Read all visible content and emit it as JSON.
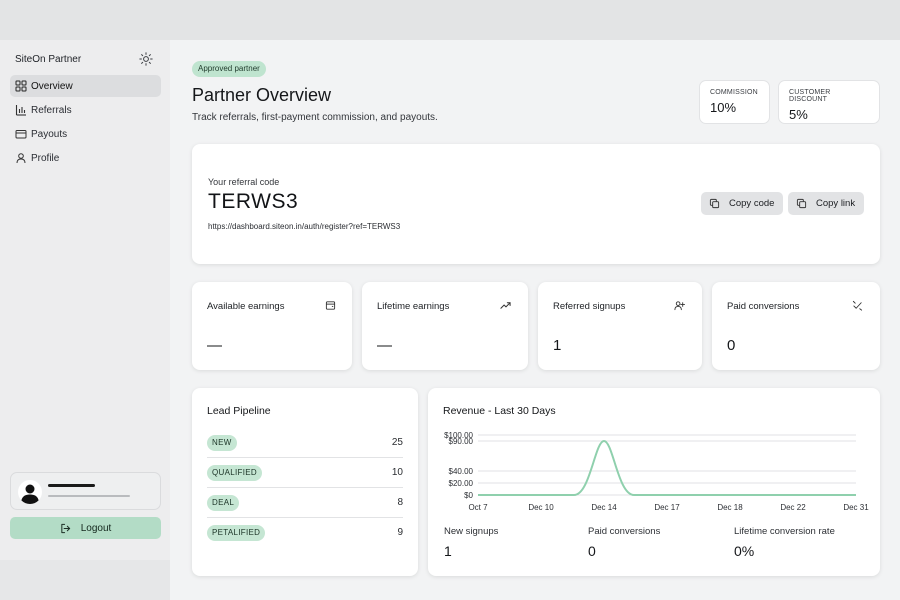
{
  "sidebar": {
    "brand": "SiteOn Partner",
    "theme_icon": "sun-icon",
    "nav": [
      {
        "label": "Overview",
        "icon": "grid-icon",
        "active": true
      },
      {
        "label": "Referrals",
        "icon": "bar-chart-icon",
        "active": false
      },
      {
        "label": "Payouts",
        "icon": "card-icon",
        "active": false
      },
      {
        "label": "Profile",
        "icon": "user-icon",
        "active": false
      }
    ],
    "logout_label": "Logout"
  },
  "header": {
    "badge": "Approved partner",
    "title": "Partner Overview",
    "subtitle": "Track referrals, first-payment commission, and payouts.",
    "stats": [
      {
        "label": "COMMISSION",
        "value": "10%"
      },
      {
        "label": "CUSTOMER DISCOUNT",
        "value": "5%"
      }
    ]
  },
  "referral": {
    "label": "Your referral code",
    "code": "TERWS3",
    "url": "https://dashboard.siteon.in/auth/register?ref=TERWS3",
    "copy_code_label": "Copy code",
    "copy_link_label": "Copy link"
  },
  "metrics": [
    {
      "label": "Available earnings",
      "value": "—",
      "icon": "wallet-icon"
    },
    {
      "label": "Lifetime earnings",
      "value": "—",
      "icon": "trending-up-icon"
    },
    {
      "label": "Referred signups",
      "value": "1",
      "icon": "user-plus-icon"
    },
    {
      "label": "Paid conversions",
      "value": "0",
      "icon": "badge-check-icon"
    }
  ],
  "pipeline": {
    "title": "Lead Pipeline",
    "rows": [
      {
        "stage": "NEW",
        "count": "25"
      },
      {
        "stage": "QUALIFIED",
        "count": "10"
      },
      {
        "stage": "DEAL",
        "count": "8"
      },
      {
        "stage": "PETALIFIED",
        "count": "9"
      }
    ]
  },
  "revenue": {
    "title": "Revenue - Last 30 Days",
    "footer": [
      {
        "label": "New signups",
        "value": "1"
      },
      {
        "label": "Paid conversions",
        "value": "0"
      },
      {
        "label": "Lifetime conversion rate",
        "value": "0%"
      }
    ]
  },
  "chart_data": {
    "type": "line",
    "title": "Revenue - Last 30 Days",
    "x": [
      "Oct 7",
      "Dec 10",
      "Dec 12",
      "Dec 13",
      "Dec 14",
      "Dec 15",
      "Dec 16",
      "Dec 17",
      "Dec 18",
      "Dec 22",
      "Dec 31"
    ],
    "series": [
      {
        "values": [
          0,
          0,
          3,
          35,
          90,
          35,
          3,
          0,
          0,
          0,
          0
        ]
      }
    ],
    "xticks": [
      "Oct 7",
      "Dec 10",
      "Dec 14",
      "Dec 17",
      "Dec 18",
      "Dec 22",
      "Dec 31"
    ],
    "yticks": [
      "$0",
      "$20.00",
      "$40.00",
      "$90.00",
      "$100.00"
    ],
    "ylim": [
      0,
      100
    ],
    "grid": true,
    "line_color": "#8fd0ad"
  },
  "colors": {
    "accent": "#b3dcc6",
    "pill": "#c5e6d3"
  }
}
